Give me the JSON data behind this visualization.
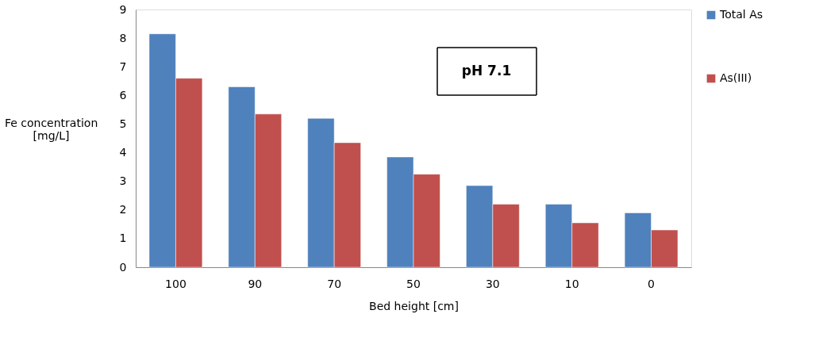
{
  "chart_data": {
    "type": "bar",
    "xlabel": "Bed height [cm]",
    "ylabel": "Fe concentration\n[mg/L]",
    "categories": [
      "100",
      "90",
      "70",
      "50",
      "30",
      "10",
      "0"
    ],
    "series": [
      {
        "name": "Total As",
        "color": "#4f81bd",
        "values": [
          8.15,
          6.3,
          5.2,
          3.85,
          2.85,
          2.2,
          1.9
        ]
      },
      {
        "name": "As(III)",
        "color": "#c0504d",
        "values": [
          6.6,
          5.35,
          4.35,
          3.25,
          2.2,
          1.55,
          1.3
        ]
      }
    ],
    "ylim": [
      0,
      9
    ],
    "yticks": [
      0,
      1,
      2,
      3,
      4,
      5,
      6,
      7,
      8,
      9
    ],
    "grid": false,
    "legend": "right",
    "annotations": [
      "pH  7.1"
    ]
  }
}
